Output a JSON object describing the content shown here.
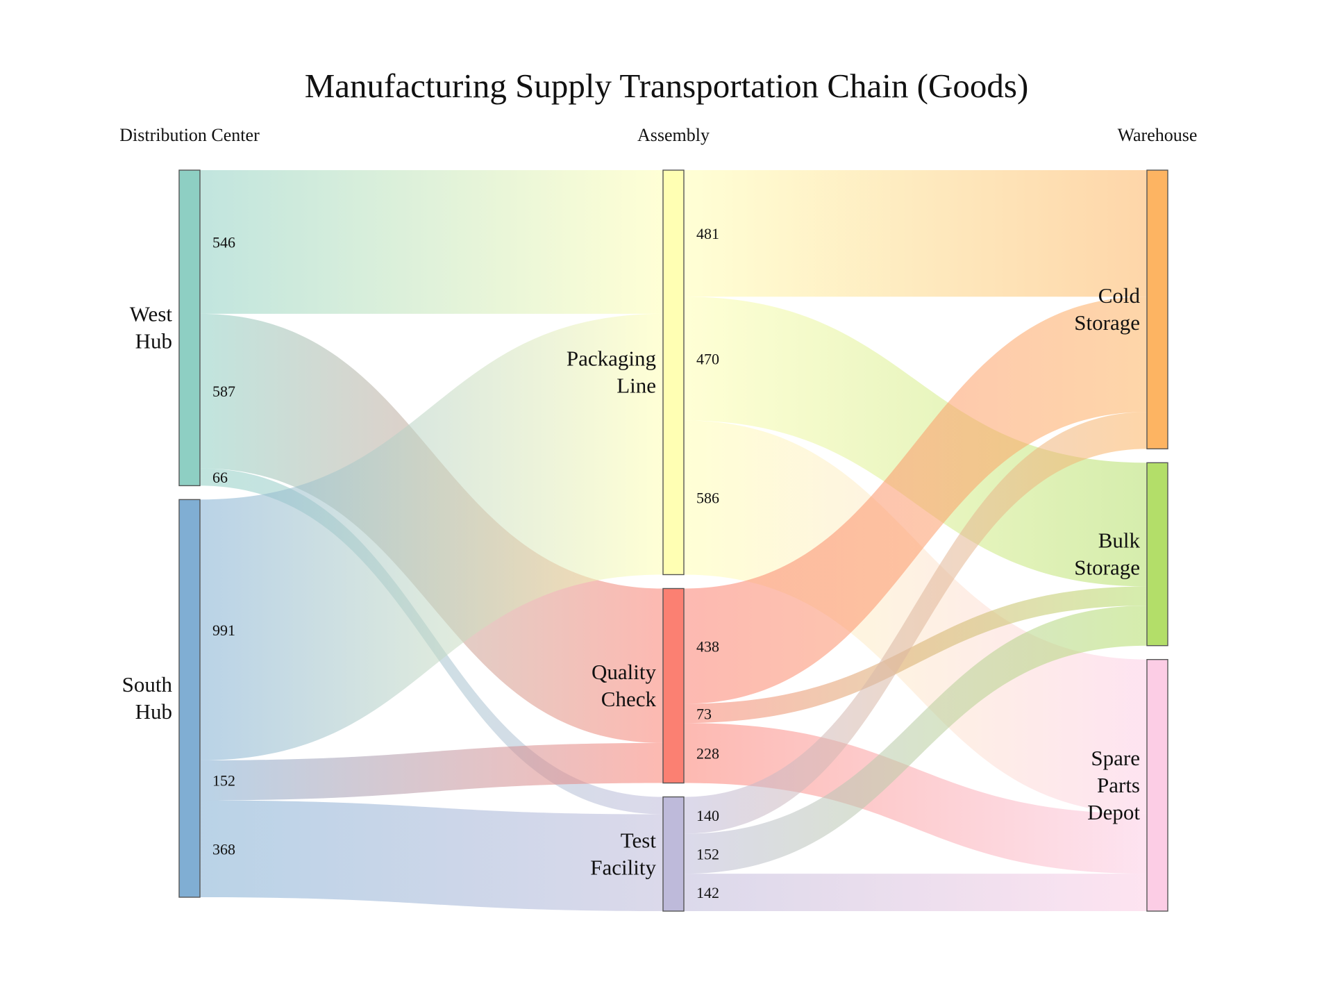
{
  "title": "Manufacturing Supply Transportation Chain (Goods)",
  "columns": [
    "Distribution Center",
    "Assembly",
    "Warehouse"
  ],
  "nodes": [
    {
      "id": "west",
      "lines": [
        "West",
        "Hub"
      ],
      "column": 0,
      "color": "#8ecfc3"
    },
    {
      "id": "south",
      "lines": [
        "South",
        "Hub"
      ],
      "column": 0,
      "color": "#80aed3"
    },
    {
      "id": "pack",
      "lines": [
        "Packaging",
        "Line"
      ],
      "column": 1,
      "color": "#ffffb3"
    },
    {
      "id": "qc",
      "lines": [
        "Quality",
        "Check"
      ],
      "column": 1,
      "color": "#fb8072"
    },
    {
      "id": "test",
      "lines": [
        "Test",
        "Facility"
      ],
      "column": 1,
      "color": "#bebada"
    },
    {
      "id": "cold",
      "lines": [
        "Cold",
        "Storage"
      ],
      "column": 2,
      "color": "#fdb462"
    },
    {
      "id": "bulk",
      "lines": [
        "Bulk",
        "Storage"
      ],
      "column": 2,
      "color": "#b3de69"
    },
    {
      "id": "spare",
      "lines": [
        "Spare",
        "Parts",
        "Depot"
      ],
      "column": 2,
      "color": "#fccde5"
    }
  ],
  "chart_data": {
    "type": "sankey",
    "title": "Manufacturing Supply Transportation Chain (Goods)",
    "columns": [
      "Distribution Center",
      "Assembly",
      "Warehouse"
    ],
    "links": [
      {
        "source": "West Hub",
        "target": "Packaging Line",
        "value": 546
      },
      {
        "source": "West Hub",
        "target": "Quality Check",
        "value": 587
      },
      {
        "source": "West Hub",
        "target": "Test Facility",
        "value": 66
      },
      {
        "source": "South Hub",
        "target": "Packaging Line",
        "value": 991
      },
      {
        "source": "South Hub",
        "target": "Quality Check",
        "value": 152
      },
      {
        "source": "South Hub",
        "target": "Test Facility",
        "value": 368
      },
      {
        "source": "Packaging Line",
        "target": "Cold Storage",
        "value": 481
      },
      {
        "source": "Packaging Line",
        "target": "Bulk Storage",
        "value": 470
      },
      {
        "source": "Packaging Line",
        "target": "Spare Parts Depot",
        "value": 586
      },
      {
        "source": "Quality Check",
        "target": "Cold Storage",
        "value": 438
      },
      {
        "source": "Quality Check",
        "target": "Bulk Storage",
        "value": 73
      },
      {
        "source": "Quality Check",
        "target": "Spare Parts Depot",
        "value": 228
      },
      {
        "source": "Test Facility",
        "target": "Cold Storage",
        "value": 140
      },
      {
        "source": "Test Facility",
        "target": "Bulk Storage",
        "value": 152
      },
      {
        "source": "Test Facility",
        "target": "Spare Parts Depot",
        "value": 142
      }
    ]
  }
}
